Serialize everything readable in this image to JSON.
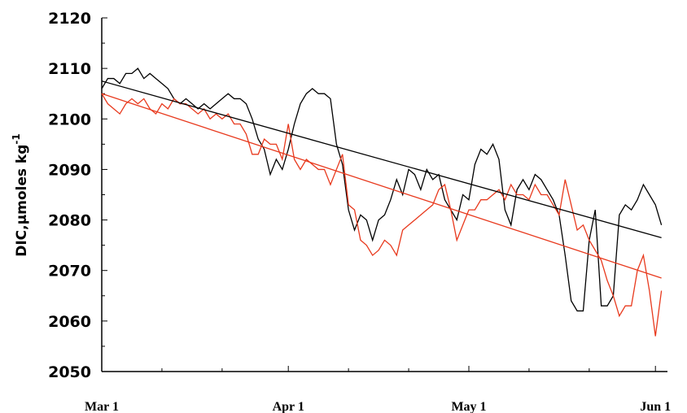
{
  "chart_data": {
    "type": "line",
    "y_label": "DIC,μmoles kg",
    "y_label_sup": "-1",
    "xlim": [
      0,
      94
    ],
    "xticks": [
      {
        "value": 0,
        "label": "Mar 1"
      },
      {
        "value": 31,
        "label": "Apr 1"
      },
      {
        "value": 61,
        "label": "May 1"
      },
      {
        "value": 92,
        "label": "Jun 1"
      }
    ],
    "xminorticks": [
      10,
      20,
      41,
      51,
      71,
      81
    ],
    "ylim": [
      2050,
      2120
    ],
    "yticks": [
      2050,
      2060,
      2070,
      2080,
      2090,
      2100,
      2110,
      2120
    ],
    "yminorticks": [
      2055,
      2065,
      2075,
      2085,
      2095,
      2105,
      2115
    ],
    "grid": false,
    "series": [
      {
        "color": "#000000",
        "x": [
          0,
          1,
          2,
          3,
          4,
          5,
          6,
          7,
          8,
          9,
          10,
          11,
          12,
          13,
          14,
          15,
          16,
          17,
          18,
          19,
          20,
          21,
          22,
          23,
          24,
          25,
          26,
          27,
          28,
          29,
          30,
          31,
          32,
          33,
          34,
          35,
          36,
          37,
          38,
          39,
          40,
          41,
          42,
          43,
          44,
          45,
          46,
          47,
          48,
          49,
          50,
          51,
          52,
          53,
          54,
          55,
          56,
          57,
          58,
          59,
          60,
          61,
          62,
          63,
          64,
          65,
          66,
          67,
          68,
          69,
          70,
          71,
          72,
          73,
          74,
          75,
          76,
          77,
          78,
          79,
          80,
          81,
          82,
          83,
          84,
          85,
          86,
          87,
          88,
          89,
          90,
          91,
          92,
          93
        ],
        "values": [
          2106,
          2108,
          2108,
          2107,
          2109,
          2109,
          2110,
          2108,
          2109,
          2108,
          2107,
          2106,
          2104,
          2103,
          2104,
          2103,
          2102,
          2103,
          2102,
          2103,
          2104,
          2105,
          2104,
          2104,
          2103,
          2100,
          2096,
          2094,
          2089,
          2092,
          2090,
          2094,
          2099,
          2103,
          2105,
          2106,
          2105,
          2105,
          2104,
          2095,
          2091,
          2082,
          2078,
          2081,
          2080,
          2076,
          2080,
          2081,
          2084,
          2088,
          2085,
          2090,
          2089,
          2086,
          2090,
          2088,
          2089,
          2084,
          2082,
          2080,
          2085,
          2084,
          2091,
          2094,
          2093,
          2095,
          2092,
          2082,
          2079,
          2086,
          2088,
          2086,
          2089,
          2088,
          2086,
          2084,
          2081,
          2073,
          2064,
          2062,
          2062,
          2076,
          2082,
          2063,
          2063,
          2065,
          2081,
          2083,
          2082,
          2084,
          2087,
          2085,
          2083,
          2079
        ]
      },
      {
        "color": "#e8391d",
        "x": [
          0,
          1,
          2,
          3,
          4,
          5,
          6,
          7,
          8,
          9,
          10,
          11,
          12,
          13,
          14,
          15,
          16,
          17,
          18,
          19,
          20,
          21,
          22,
          23,
          24,
          25,
          26,
          27,
          28,
          29,
          30,
          31,
          32,
          33,
          34,
          35,
          36,
          37,
          38,
          39,
          40,
          41,
          42,
          43,
          44,
          45,
          46,
          47,
          48,
          49,
          50,
          51,
          52,
          53,
          54,
          55,
          56,
          57,
          58,
          59,
          60,
          61,
          62,
          63,
          64,
          65,
          66,
          67,
          68,
          69,
          70,
          71,
          72,
          73,
          74,
          75,
          76,
          77,
          78,
          79,
          80,
          81,
          82,
          83,
          84,
          85,
          86,
          87,
          88,
          89,
          90,
          91,
          92,
          93
        ],
        "values": [
          2105,
          2103,
          2102,
          2101,
          2103,
          2104,
          2103,
          2104,
          2102,
          2101,
          2103,
          2102,
          2104,
          2103,
          2103,
          2102,
          2101,
          2102,
          2100,
          2101,
          2100,
          2101,
          2099,
          2099,
          2097,
          2093,
          2093,
          2096,
          2095,
          2095,
          2092,
          2099,
          2092,
          2090,
          2092,
          2091,
          2090,
          2090,
          2087,
          2090,
          2093,
          2083,
          2082,
          2076,
          2075,
          2073,
          2074,
          2076,
          2075,
          2073,
          2078,
          2079,
          2080,
          2081,
          2082,
          2083,
          2086,
          2087,
          2082,
          2076,
          2079,
          2082,
          2082,
          2084,
          2084,
          2085,
          2086,
          2084,
          2087,
          2085,
          2085,
          2084,
          2087,
          2085,
          2085,
          2083,
          2081,
          2088,
          2083,
          2078,
          2079,
          2076,
          2074,
          2072,
          2068,
          2065,
          2061,
          2063,
          2063,
          2070,
          2073,
          2066,
          2057,
          2066
        ]
      },
      {
        "color": "#000000",
        "x": [
          0,
          93
        ],
        "values": [
          2107.5,
          2076.5
        ]
      },
      {
        "color": "#e8391d",
        "x": [
          0,
          93
        ],
        "values": [
          2105,
          2068.5
        ]
      }
    ]
  }
}
